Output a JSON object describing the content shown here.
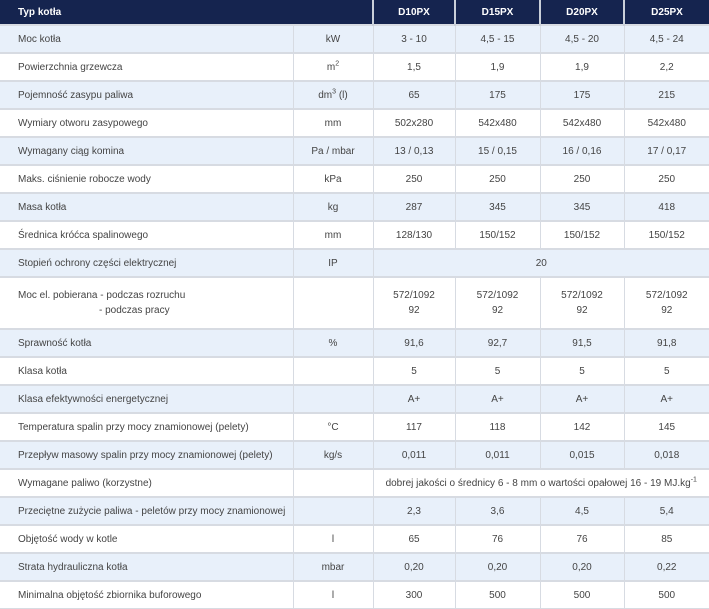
{
  "header": {
    "title": "Typ kotła",
    "models": [
      "D10PX",
      "D15PX",
      "D20PX",
      "D25PX"
    ]
  },
  "rows": [
    {
      "label": "Moc kotła",
      "unit": "kW",
      "values": [
        "3 - 10",
        "4,5 - 15",
        "4,5 - 20",
        "4,5 - 24"
      ]
    },
    {
      "label": "Powierzchnia grzewcza",
      "unit": "m",
      "unit_sup": "2",
      "values": [
        "1,5",
        "1,9",
        "1,9",
        "2,2"
      ]
    },
    {
      "label": "Pojemność zasypu paliwa",
      "unit": "dm",
      "unit_sup": "3",
      "unit_suffix": " (l)",
      "values": [
        "65",
        "175",
        "175",
        "215"
      ]
    },
    {
      "label": "Wymiary otworu zasypowego",
      "unit": "mm",
      "values": [
        "502x280",
        "542x480",
        "542x480",
        "542x480"
      ]
    },
    {
      "label": "Wymagany ciąg komina",
      "unit": "Pa / mbar",
      "values": [
        "13 / 0,13",
        "15 / 0,15",
        "16 / 0,16",
        "17 / 0,17"
      ]
    },
    {
      "label": "Maks. ciśnienie robocze wody",
      "unit": "kPa",
      "values": [
        "250",
        "250",
        "250",
        "250"
      ]
    },
    {
      "label": "Masa kotła",
      "unit": "kg",
      "values": [
        "287",
        "345",
        "345",
        "418"
      ]
    },
    {
      "label": "Średnica króćca spalinowego",
      "unit": "mm",
      "values": [
        "128/130",
        "150/152",
        "150/152",
        "150/152"
      ]
    },
    {
      "label": "Stopień ochrony części elektrycznej",
      "unit": "IP",
      "span_value": "20"
    },
    {
      "label": "Moc el. pobierana - podczas rozruchu",
      "label2": "- podczas pracy",
      "unit": "",
      "values": [
        "572/1092",
        "572/1092",
        "572/1092",
        "572/1092"
      ],
      "values2": [
        "92",
        "92",
        "92",
        "92"
      ]
    },
    {
      "label": "Sprawność kotła",
      "unit": "%",
      "values": [
        "91,6",
        "92,7",
        "91,5",
        "91,8"
      ]
    },
    {
      "label": "Klasa kotła",
      "unit": "",
      "values": [
        "5",
        "5",
        "5",
        "5"
      ]
    },
    {
      "label": "Klasa efektywności energetycznej",
      "unit": "",
      "values": [
        "A+",
        "A+",
        "A+",
        "A+"
      ]
    },
    {
      "label": "Temperatura spalin przy mocy znamionowej (pelety)",
      "unit": "°C",
      "values": [
        "117",
        "118",
        "142",
        "145"
      ]
    },
    {
      "label": "Przepływ masowy spalin przy mocy znamionowej (pelety)",
      "unit": "kg/s",
      "values": [
        "0,011",
        "0,011",
        "0,015",
        "0,018"
      ]
    },
    {
      "label": "Wymagane paliwo (korzystne)",
      "unit": "",
      "span_value": "dobrej jakości o średnicy 6 - 8 mm o wartości opałowej 16 - 19 MJ.kg",
      "span_sup": "-1"
    },
    {
      "label": "Przeciętne zużycie paliwa - peletów przy mocy znamionowej",
      "unit": "",
      "values": [
        "2,3",
        "3,6",
        "4,5",
        "5,4"
      ]
    },
    {
      "label": "Objętość wody w kotle",
      "unit": "l",
      "values": [
        "65",
        "76",
        "76",
        "85"
      ]
    },
    {
      "label": "Strata hydrauliczna kotła",
      "unit": "mbar",
      "values": [
        "0,20",
        "0,20",
        "0,20",
        "0,22"
      ]
    },
    {
      "label": "Minimalna objętość zbiornika buforowego",
      "unit": "l",
      "values": [
        "300",
        "500",
        "500",
        "500"
      ]
    }
  ],
  "colors": {
    "header_bg": "#15244f",
    "alt_row": "#e8f0fa",
    "border": "#d7dbe2"
  }
}
